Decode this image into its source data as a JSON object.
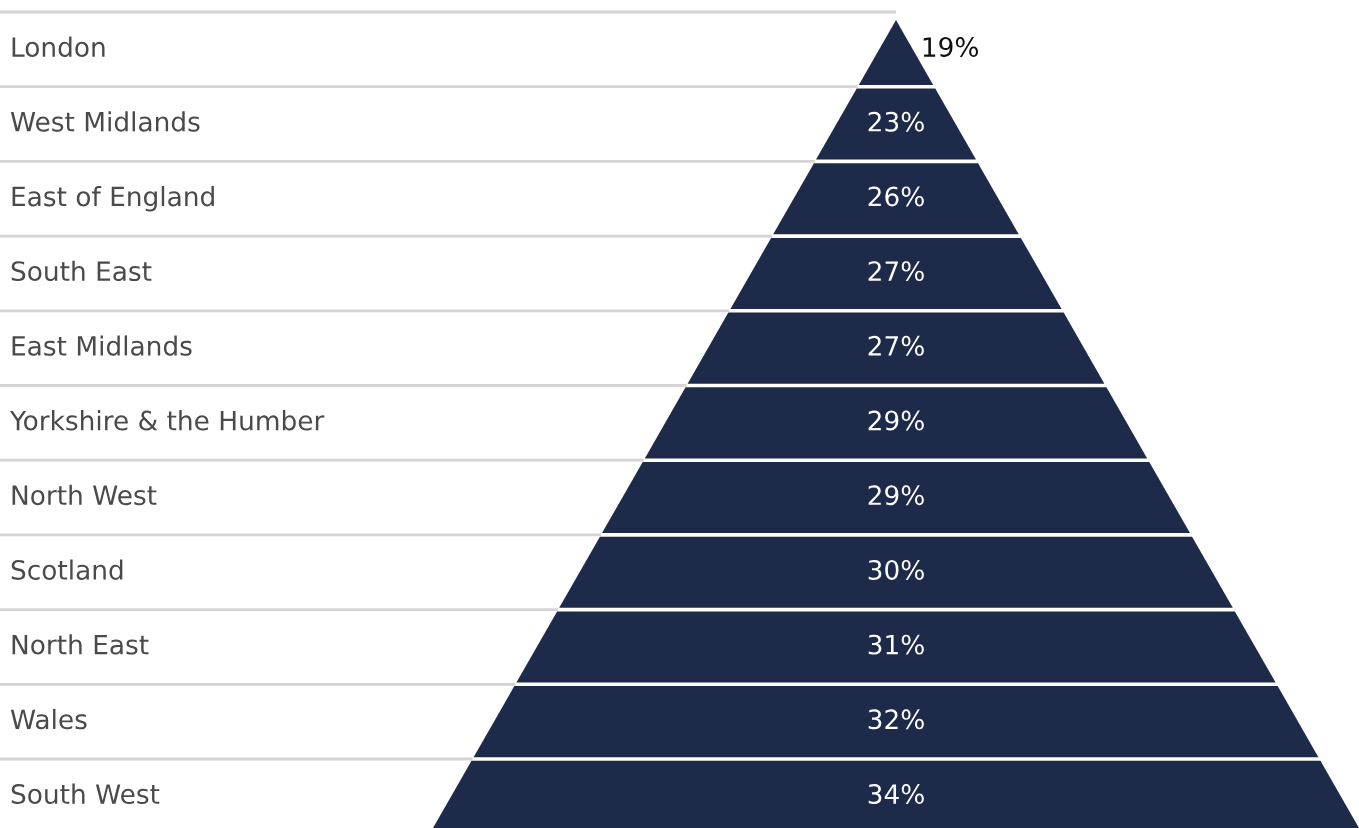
{
  "chart_data": {
    "type": "other",
    "categories": [
      "London",
      "West Midlands",
      "East of England",
      "South East",
      "East Midlands",
      "Yorkshire & the Humber",
      "North West",
      "Scotland",
      "North East",
      "Wales",
      "South West"
    ],
    "values": [
      19,
      23,
      26,
      27,
      27,
      29,
      29,
      30,
      31,
      32,
      34
    ],
    "value_labels": [
      "19%",
      "23%",
      "26%",
      "27%",
      "27%",
      "29%",
      "29%",
      "30%",
      "31%",
      "32%",
      "34%"
    ],
    "color": "#1e2a4a"
  }
}
